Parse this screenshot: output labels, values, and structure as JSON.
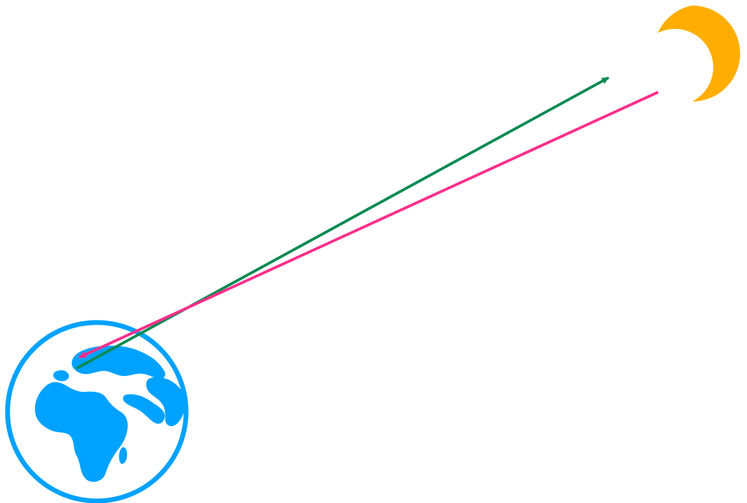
{
  "colors": {
    "background": "#ffffff",
    "earth": "#00a2ff",
    "moon": "#ffae00",
    "outbound_arrow": "#0a8a52",
    "return_arrow": "#ff2e8a"
  },
  "icons": {
    "earth": "earth-globe-icon",
    "moon": "crescent-moon-icon"
  }
}
